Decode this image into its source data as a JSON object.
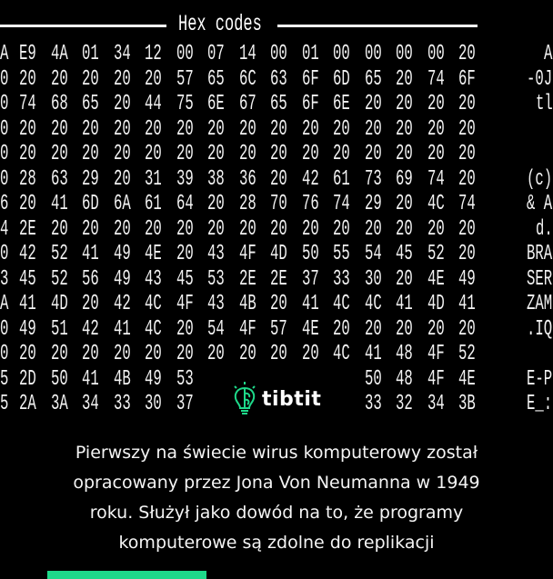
{
  "hex_view": {
    "title": "Hex codes",
    "rows": [
      {
        "lead": "A",
        "bytes": [
          "E9",
          "4A",
          "01",
          "34",
          "12",
          "00",
          "07",
          "14",
          "00",
          "01",
          "00",
          "00",
          "00",
          "00",
          "20"
        ],
        "ascii": "A"
      },
      {
        "lead": "0",
        "bytes": [
          "20",
          "20",
          "20",
          "20",
          "20",
          "57",
          "65",
          "6C",
          "63",
          "6F",
          "6D",
          "65",
          "20",
          "74",
          "6F"
        ],
        "ascii": "-0J"
      },
      {
        "lead": "0",
        "bytes": [
          "74",
          "68",
          "65",
          "20",
          "44",
          "75",
          "6E",
          "67",
          "65",
          "6F",
          "6E",
          "20",
          "20",
          "20",
          "20"
        ],
        "ascii": "tl"
      },
      {
        "lead": "0",
        "bytes": [
          "20",
          "20",
          "20",
          "20",
          "20",
          "20",
          "20",
          "20",
          "20",
          "20",
          "20",
          "20",
          "20",
          "20",
          "20"
        ],
        "ascii": ""
      },
      {
        "lead": "0",
        "bytes": [
          "20",
          "20",
          "20",
          "20",
          "20",
          "20",
          "20",
          "20",
          "20",
          "20",
          "20",
          "20",
          "20",
          "20",
          "20"
        ],
        "ascii": ""
      },
      {
        "lead": "0",
        "bytes": [
          "28",
          "63",
          "29",
          "20",
          "31",
          "39",
          "38",
          "36",
          "20",
          "42",
          "61",
          "73",
          "69",
          "74",
          "20"
        ],
        "ascii": "(c)"
      },
      {
        "lead": "6",
        "bytes": [
          "20",
          "41",
          "6D",
          "6A",
          "61",
          "64",
          "20",
          "28",
          "70",
          "76",
          "74",
          "29",
          "20",
          "4C",
          "74"
        ],
        "ascii": "& A"
      },
      {
        "lead": "4",
        "bytes": [
          "2E",
          "20",
          "20",
          "20",
          "20",
          "20",
          "20",
          "20",
          "20",
          "20",
          "20",
          "20",
          "20",
          "20",
          "20"
        ],
        "ascii": "d."
      },
      {
        "lead": "0",
        "bytes": [
          "42",
          "52",
          "41",
          "49",
          "4E",
          "20",
          "43",
          "4F",
          "4D",
          "50",
          "55",
          "54",
          "45",
          "52",
          "20"
        ],
        "ascii": "BRA"
      },
      {
        "lead": "3",
        "bytes": [
          "45",
          "52",
          "56",
          "49",
          "43",
          "45",
          "53",
          "2E",
          "2E",
          "37",
          "33",
          "30",
          "20",
          "4E",
          "49"
        ],
        "ascii": "SER"
      },
      {
        "lead": "A",
        "bytes": [
          "41",
          "4D",
          "20",
          "42",
          "4C",
          "4F",
          "43",
          "4B",
          "20",
          "41",
          "4C",
          "4C",
          "41",
          "4D",
          "41"
        ],
        "ascii": "ZAM"
      },
      {
        "lead": "0",
        "bytes": [
          "49",
          "51",
          "42",
          "41",
          "4C",
          "20",
          "54",
          "4F",
          "57",
          "4E",
          "20",
          "20",
          "20",
          "20",
          "20"
        ],
        "ascii": ".IQ"
      },
      {
        "lead": "0",
        "bytes": [
          "20",
          "20",
          "20",
          "20",
          "20",
          "20",
          "20",
          "20",
          "20",
          "20",
          "4C",
          "41",
          "48",
          "4F",
          "52"
        ],
        "ascii": ""
      },
      {
        "lead": "5",
        "bytes": [
          "2D",
          "50",
          "41",
          "4B",
          "49",
          "53",
          "",
          "",
          "",
          "",
          "",
          "50",
          "48",
          "4F",
          "4E"
        ],
        "ascii": "E-P"
      },
      {
        "lead": "5",
        "bytes": [
          "2A",
          "3A",
          "34",
          "33",
          "30",
          "37",
          "",
          "",
          "",
          "",
          "",
          "33",
          "32",
          "34",
          "3B"
        ],
        "ascii": "E_:"
      }
    ]
  },
  "brand": {
    "name": "tibtit",
    "icon": "lightbulb-brain-icon",
    "color": "#1ed98a"
  },
  "caption": {
    "lines": [
      "Pierwszy na świecie wirus komputerowy został",
      "opracowany przez Jona Von Neumanna w 1949",
      "roku. Służył jako dowód na to, że programy",
      "komputerowe są zdolne do replikacji"
    ]
  },
  "accent_bar_color": "#1ed98a"
}
